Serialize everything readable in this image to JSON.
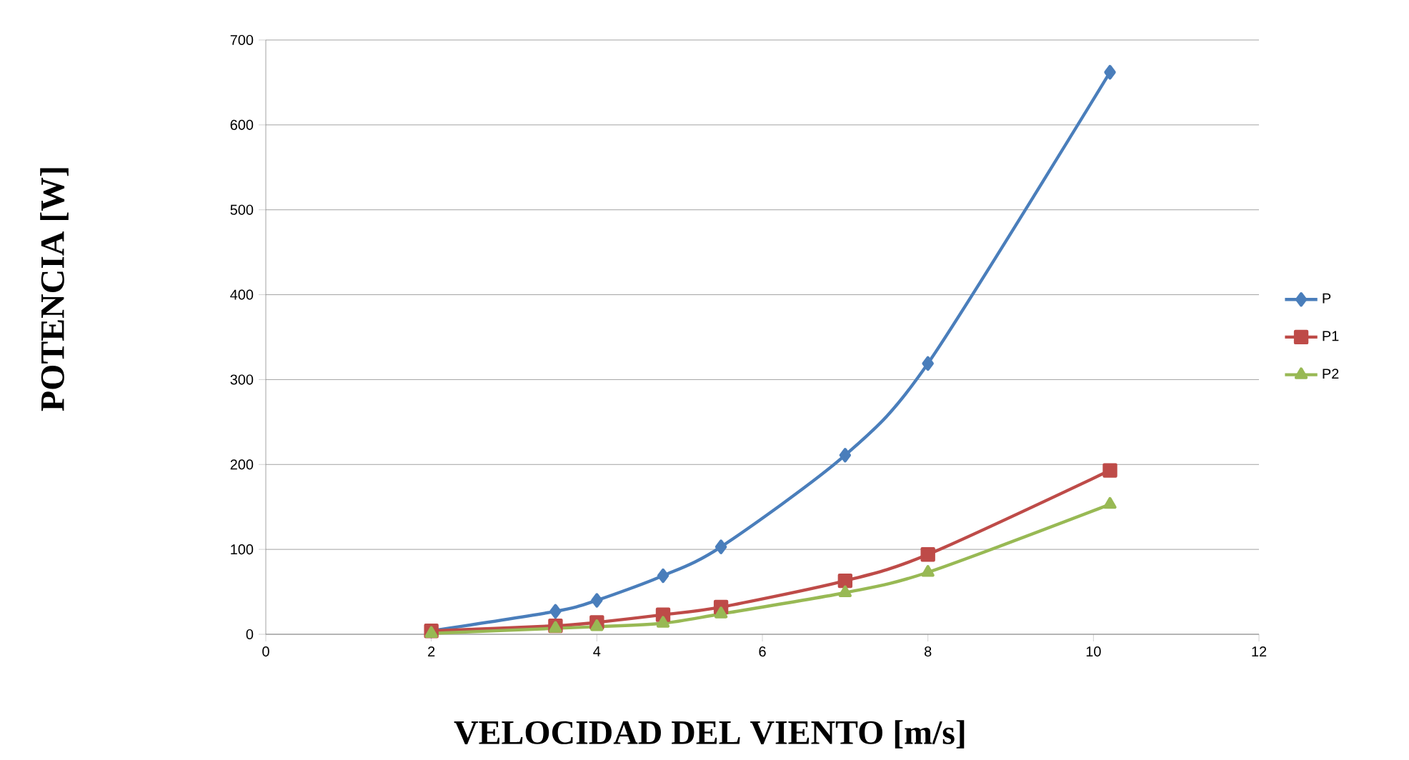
{
  "chart_data": {
    "type": "line",
    "xlabel": "VELOCIDAD DEL VIENTO [m/s]",
    "ylabel": "POTENCIA [W]",
    "x": [
      2,
      3.5,
      4,
      4.8,
      5.5,
      7,
      8,
      10.2
    ],
    "series": [
      {
        "name": "P",
        "color": "#4a7ebb",
        "marker": "diamond",
        "values": [
          4,
          27,
          40,
          69,
          103,
          211,
          319,
          662
        ]
      },
      {
        "name": "P1",
        "color": "#be4b48",
        "marker": "square",
        "values": [
          4,
          10,
          14,
          23,
          32,
          63,
          94,
          193
        ]
      },
      {
        "name": "P2",
        "color": "#98b954",
        "marker": "triangle",
        "values": [
          1,
          7,
          9,
          13,
          24,
          49,
          73,
          153
        ]
      }
    ],
    "xlim": [
      0,
      12
    ],
    "xticks": [
      0,
      2,
      4,
      6,
      8,
      10,
      12
    ],
    "ylim": [
      0,
      700
    ],
    "yticks": [
      0,
      100,
      200,
      300,
      400,
      500,
      600,
      700
    ],
    "grid": "y",
    "legend": "right",
    "line_style": "solid"
  }
}
